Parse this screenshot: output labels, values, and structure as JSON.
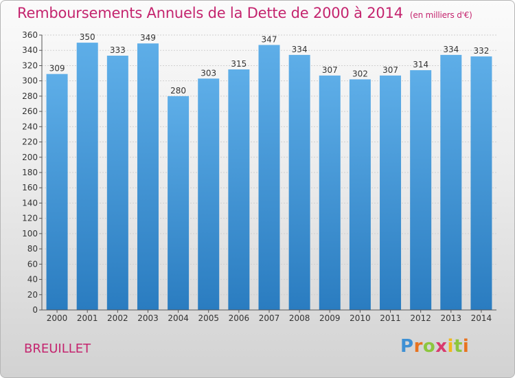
{
  "header": {
    "title": "Remboursements Annuels de la Dette de 2000 à 2014",
    "unit": "(en milliers d'€)"
  },
  "footer": {
    "commune": "BREUILLET",
    "logo_text": "Proxiti"
  },
  "colors": {
    "title": "#c4246e",
    "bar_top": "#5eaee8",
    "bar_bottom": "#2a7cc0",
    "grid": "#d0d0d0"
  },
  "chart_data": {
    "type": "bar",
    "title": "Remboursements Annuels de la Dette de 2000 à 2014",
    "xlabel": "",
    "ylabel": "",
    "ylim": [
      0,
      360
    ],
    "yticks": [
      0,
      20,
      40,
      60,
      80,
      100,
      120,
      140,
      160,
      180,
      200,
      220,
      240,
      260,
      280,
      300,
      320,
      340,
      360
    ],
    "grid": true,
    "categories": [
      "2000",
      "2001",
      "2002",
      "2003",
      "2004",
      "2005",
      "2006",
      "2007",
      "2008",
      "2009",
      "2010",
      "2011",
      "2012",
      "2013",
      "2014"
    ],
    "values": [
      309,
      350,
      333,
      349,
      280,
      303,
      315,
      347,
      334,
      307,
      302,
      307,
      314,
      334,
      332
    ],
    "data_labels": [
      "309",
      "350",
      "333",
      "349",
      "280",
      "303",
      "315",
      "347",
      "334",
      "307",
      "302",
      "307",
      "314",
      "334",
      "332"
    ]
  }
}
